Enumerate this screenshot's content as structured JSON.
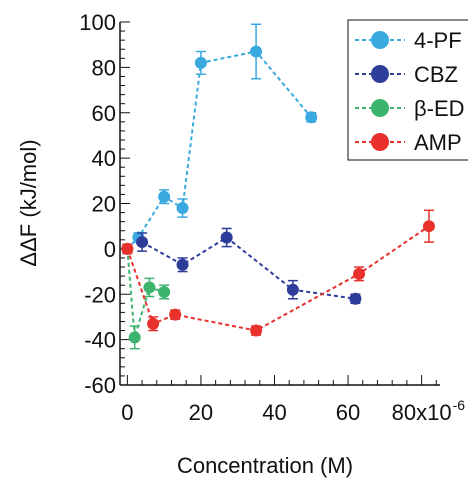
{
  "chart_data": {
    "type": "line",
    "xlabel": "Concentration (M)",
    "ylabel": "ΔΔF (kJ/mol)",
    "xlim": [
      -2,
      85
    ],
    "ylim": [
      -60,
      100
    ],
    "x_ticks": [
      0,
      20,
      40,
      60,
      80
    ],
    "x_tick_labels": [
      "0",
      "20",
      "40",
      "60",
      "80x10"
    ],
    "x_exponent_label": "-6",
    "y_ticks": [
      -60,
      -40,
      -20,
      0,
      20,
      40,
      60,
      80,
      100
    ],
    "y_tick_labels": [
      "-60",
      "-40",
      "-20",
      "0",
      "20",
      "40",
      "60",
      "80",
      "100"
    ],
    "legend_position": "top-right",
    "series": [
      {
        "name": "4-PF",
        "color": "#3aa9e0",
        "x": [
          0,
          3,
          10,
          15,
          20,
          35,
          50
        ],
        "y": [
          0,
          5,
          23,
          18,
          82,
          87,
          58
        ],
        "err": [
          2,
          2,
          3,
          4,
          5,
          12,
          2
        ]
      },
      {
        "name": "CBZ",
        "color": "#2e3d9a",
        "x": [
          4,
          15,
          27,
          45,
          62
        ],
        "y": [
          3,
          -7,
          5,
          -18,
          -22
        ],
        "err": [
          4,
          3,
          4,
          4,
          2
        ]
      },
      {
        "name": "β-ED",
        "color": "#3cb46e",
        "x": [
          0,
          2,
          6,
          10
        ],
        "y": [
          0,
          -39,
          -17,
          -19
        ],
        "err": [
          2,
          5,
          4,
          3
        ]
      },
      {
        "name": "AMP",
        "color": "#e8312c",
        "x": [
          0,
          7,
          13,
          35,
          63,
          82
        ],
        "y": [
          0,
          -33,
          -29,
          -36,
          -11,
          10
        ],
        "err": [
          2,
          3,
          2,
          2,
          3,
          7
        ]
      }
    ]
  }
}
